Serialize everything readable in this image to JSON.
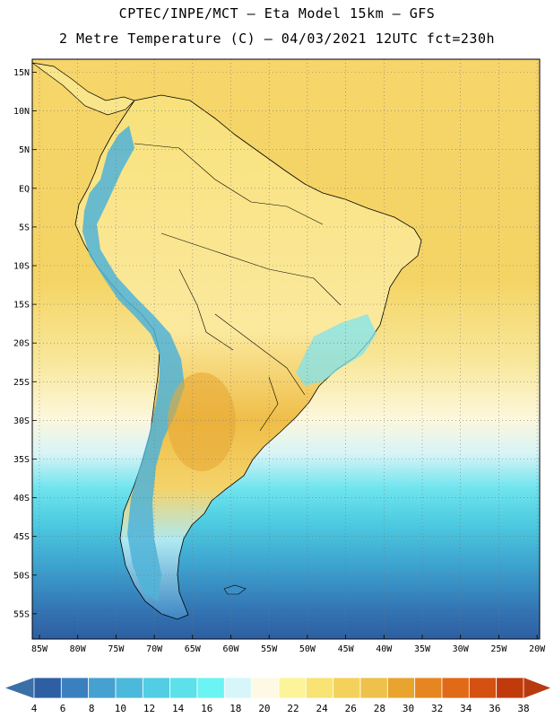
{
  "header": {
    "line1": "CPTEC/INPE/MCT –  Eta Model 15km – GFS",
    "line2": "2 Metre Temperature (C) – 04/03/2021 12UTC fct=230h"
  },
  "map": {
    "lat_labels": [
      "15N",
      "10N",
      "5N",
      "EQ",
      "5S",
      "10S",
      "15S",
      "20S",
      "25S",
      "30S",
      "35S",
      "40S",
      "45S",
      "50S",
      "55S"
    ],
    "lon_labels": [
      "85W",
      "80W",
      "75W",
      "70W",
      "65W",
      "60W",
      "55W",
      "50W",
      "45W",
      "40W",
      "35W",
      "30W",
      "25W",
      "20W"
    ]
  },
  "colorbar": {
    "ticks": [
      "4",
      "6",
      "8",
      "10",
      "12",
      "14",
      "16",
      "18",
      "20",
      "22",
      "24",
      "26",
      "28",
      "30",
      "32",
      "34",
      "36",
      "38"
    ],
    "low_color": "#3a6fa8",
    "high_color": "#b83a10",
    "colors": [
      "#2e5fa3",
      "#3a80bf",
      "#45a1cf",
      "#4cb9dc",
      "#52cde3",
      "#5ce0ea",
      "#6cf3f3",
      "#d6f6fb",
      "#fdf9e4",
      "#fdf39a",
      "#f8e373",
      "#f4d15a",
      "#eec14b",
      "#e8a42e",
      "#e58620",
      "#e06a16",
      "#d55111",
      "#c03a0c"
    ]
  }
}
